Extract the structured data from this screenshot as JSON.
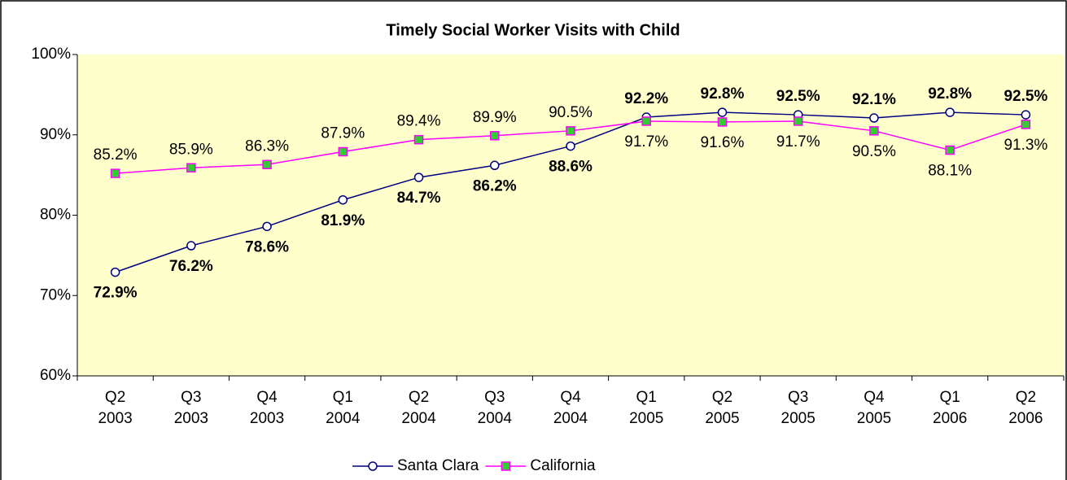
{
  "chart_data": {
    "type": "line",
    "title": "Timely Social Worker Visits with Child",
    "categories": [
      "Q2\n2003",
      "Q3\n2003",
      "Q4\n2003",
      "Q1\n2004",
      "Q2\n2004",
      "Q3\n2004",
      "Q4\n2004",
      "Q1\n2005",
      "Q2\n2005",
      "Q3\n2005",
      "Q4\n2005",
      "Q1\n2006",
      "Q2\n2006"
    ],
    "series": [
      {
        "name": "Santa Clara",
        "color": "#000080",
        "marker_color": "#ffffff",
        "values": [
          72.9,
          76.2,
          78.6,
          81.9,
          84.7,
          86.2,
          88.6,
          92.2,
          92.8,
          92.5,
          92.1,
          92.8,
          92.5
        ],
        "value_labels": [
          "72.9%",
          "76.2%",
          "78.6%",
          "81.9%",
          "84.7%",
          "86.2%",
          "88.6%",
          "92.2%",
          "92.8%",
          "92.5%",
          "92.1%",
          "92.8%",
          "92.5%"
        ]
      },
      {
        "name": "California",
        "color": "#ff00ff",
        "marker_color": "#33cc33",
        "values": [
          85.2,
          85.9,
          86.3,
          87.9,
          89.4,
          89.9,
          90.5,
          91.7,
          91.6,
          91.7,
          90.5,
          88.1,
          91.3
        ],
        "value_labels": [
          "85.2%",
          "85.9%",
          "86.3%",
          "87.9%",
          "89.4%",
          "89.9%",
          "90.5%",
          "91.7%",
          "91.6%",
          "91.7%",
          "90.5%",
          "88.1%",
          "91.3%"
        ]
      }
    ],
    "ylim": [
      60,
      100
    ],
    "yticks": [
      {
        "value": 60,
        "label": "60%"
      },
      {
        "value": 70,
        "label": "70%"
      },
      {
        "value": 80,
        "label": "80%"
      },
      {
        "value": 90,
        "label": "90%"
      },
      {
        "value": 100,
        "label": "100%"
      }
    ],
    "grid": false,
    "legend": "bottom",
    "plot_background": "#ffffcc"
  }
}
